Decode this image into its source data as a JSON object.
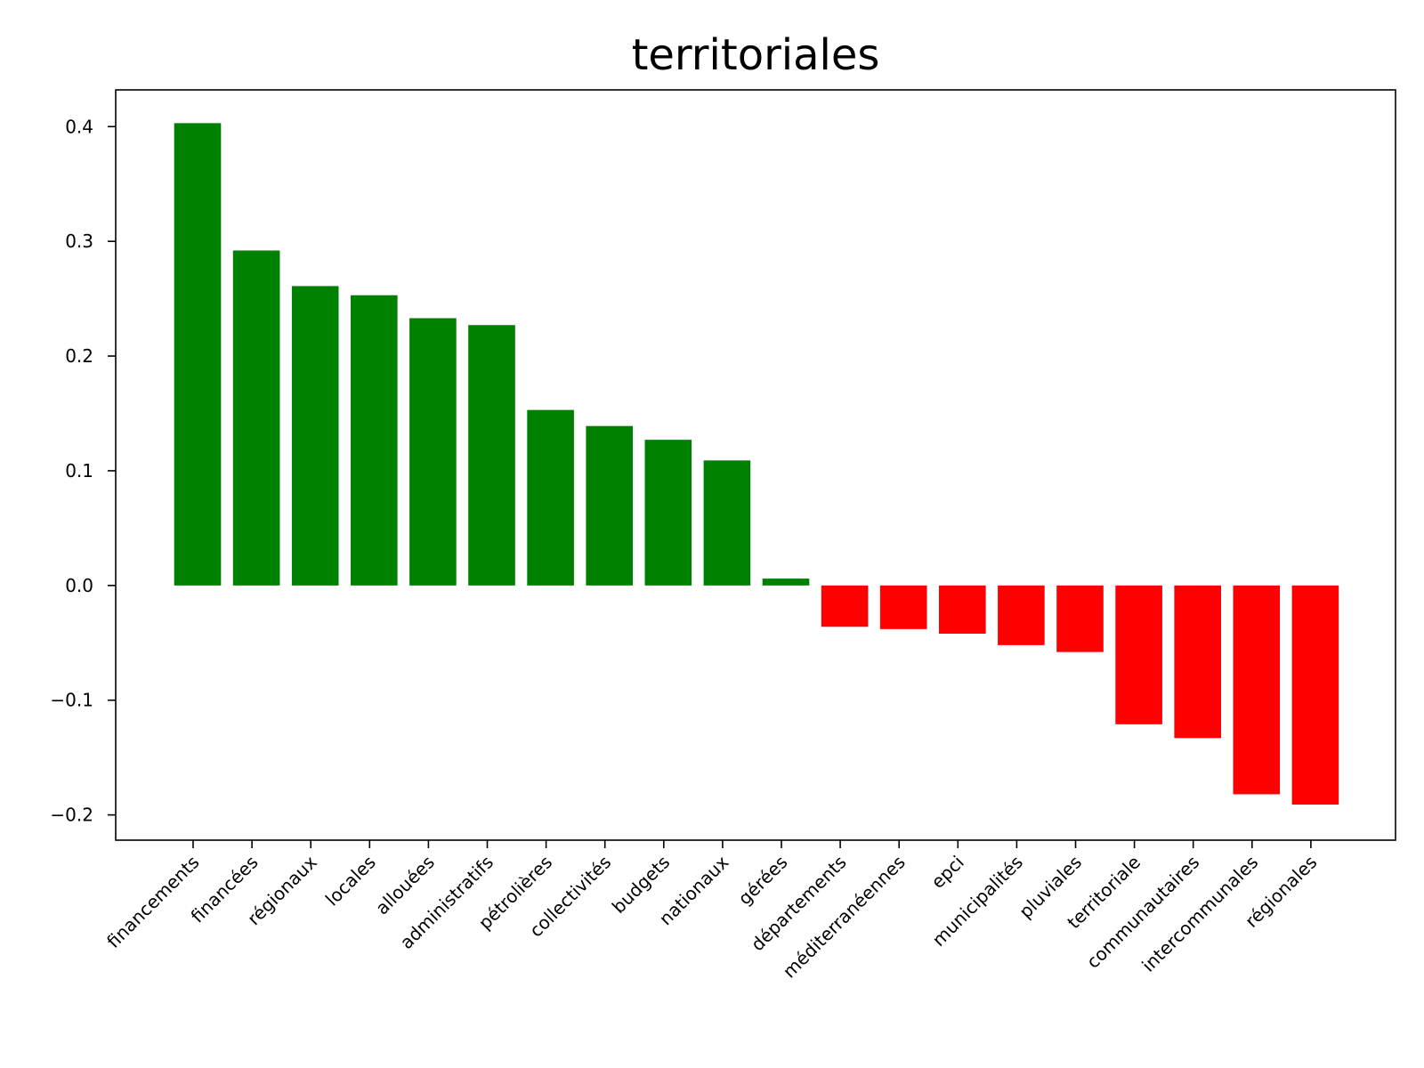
{
  "chart_data": {
    "type": "bar",
    "title": "territoriales",
    "xlabel": "",
    "ylabel": "",
    "ylim": [
      -0.222,
      0.432
    ],
    "yticks": [
      0.4,
      0.3,
      0.2,
      0.1,
      0.0,
      -0.1,
      -0.2
    ],
    "ytick_labels": [
      "0.4",
      "0.3",
      "0.2",
      "0.1",
      "0.0",
      "−0.1",
      "−0.2"
    ],
    "grid": false,
    "positive_color": "#008000",
    "negative_color": "#ff0000",
    "categories": [
      "financements",
      "financées",
      "régionaux",
      "locales",
      "allouées",
      "administratifs",
      "pétrolières",
      "collectivités",
      "budgets",
      "nationaux",
      "gérées",
      "départements",
      "méditerranéennes",
      "epci",
      "municipalités",
      "pluviales",
      "territoriale",
      "communautaires",
      "intercommunales",
      "régionales"
    ],
    "values": [
      0.403,
      0.292,
      0.261,
      0.253,
      0.233,
      0.227,
      0.153,
      0.139,
      0.127,
      0.109,
      0.006,
      -0.036,
      -0.038,
      -0.042,
      -0.052,
      -0.058,
      -0.121,
      -0.133,
      -0.182,
      -0.191
    ]
  }
}
